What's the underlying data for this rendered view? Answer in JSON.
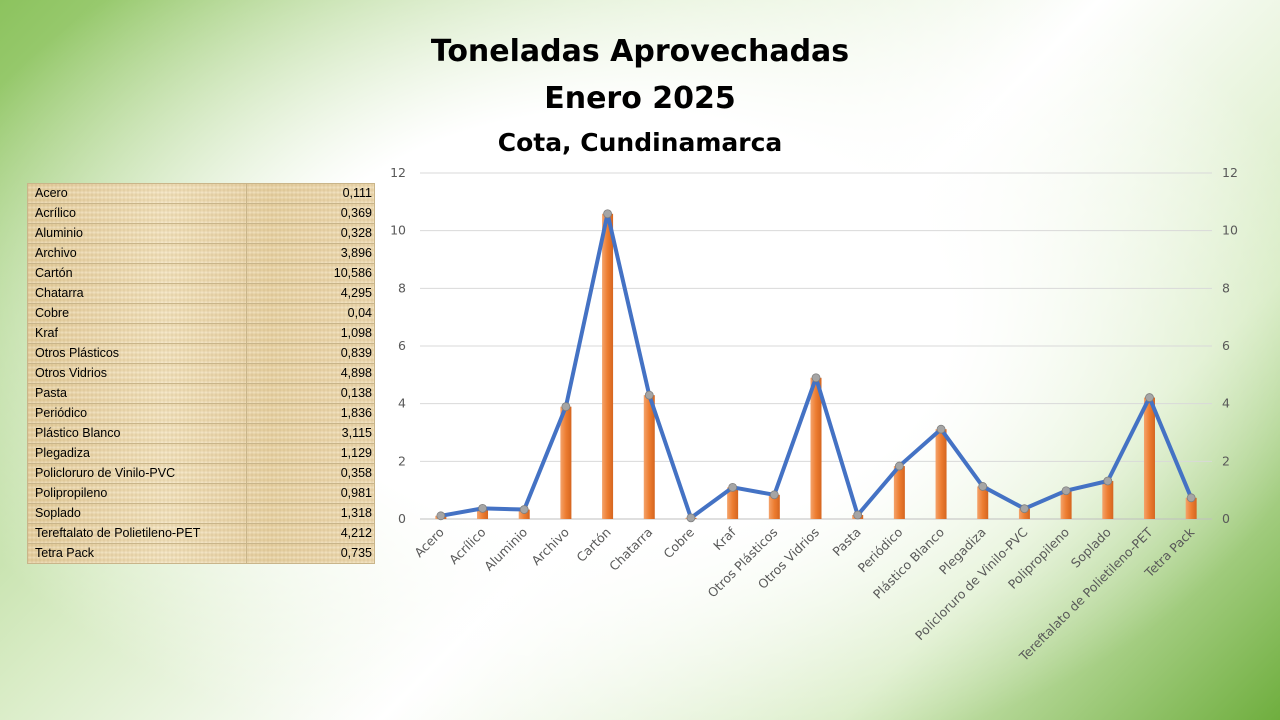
{
  "slide": {
    "title_line1": "Toneladas Aprovechadas",
    "title_line2": "Enero 2025",
    "subtitle": "Cota, Cundinamarca"
  },
  "table": {
    "rows": [
      {
        "label": "Acero",
        "value": "0,111"
      },
      {
        "label": "Acrílico",
        "value": "0,369"
      },
      {
        "label": "Aluminio",
        "value": "0,328"
      },
      {
        "label": "Archivo",
        "value": "3,896"
      },
      {
        "label": "Cartón",
        "value": "10,586"
      },
      {
        "label": "Chatarra",
        "value": "4,295"
      },
      {
        "label": "Cobre",
        "value": "0,04"
      },
      {
        "label": "Kraf",
        "value": "1,098"
      },
      {
        "label": "Otros Plásticos",
        "value": "0,839"
      },
      {
        "label": "Otros Vidrios",
        "value": "4,898"
      },
      {
        "label": "Pasta",
        "value": "0,138"
      },
      {
        "label": "Periódico",
        "value": "1,836"
      },
      {
        "label": "Plástico Blanco",
        "value": "3,115"
      },
      {
        "label": "Plegadiza",
        "value": "1,129"
      },
      {
        "label": "Policloruro de Vinilo-PVC",
        "value": "0,358"
      },
      {
        "label": "Polipropileno",
        "value": "0,981"
      },
      {
        "label": "Soplado",
        "value": "1,318"
      },
      {
        "label": "Tereftalato de Polietileno-PET",
        "value": "4,212"
      },
      {
        "label": "Tetra Pack",
        "value": "0,735"
      }
    ]
  },
  "colors": {
    "bar": "#ed7d31",
    "line": "#4472c4",
    "marker": "#a5a5a5",
    "grid": "#d9d9d9"
  },
  "chart_data": {
    "type": "bar",
    "overlay": "line",
    "categories": [
      "Acero",
      "Acrílico",
      "Aluminio",
      "Archivo",
      "Cartón",
      "Chatarra",
      "Cobre",
      "Kraf",
      "Otros Plásticos",
      "Otros Vidrios",
      "Pasta",
      "Periódico",
      "Plástico Blanco",
      "Plegadiza",
      "Policloruro de Vinilo-PVC",
      "Polipropileno",
      "Soplado",
      "Tereftalato de Polietileno-PET",
      "Tetra Pack"
    ],
    "values": [
      0.111,
      0.369,
      0.328,
      3.896,
      10.586,
      4.295,
      0.04,
      1.098,
      0.839,
      4.898,
      0.138,
      1.836,
      3.115,
      1.129,
      0.358,
      0.981,
      1.318,
      4.212,
      0.735
    ],
    "ylim": [
      0,
      12
    ],
    "yticks": [
      "0",
      "2",
      "4",
      "6",
      "8",
      "10",
      "12"
    ],
    "secondary_ylim": [
      0,
      12
    ],
    "grid": true,
    "legend": "none"
  }
}
